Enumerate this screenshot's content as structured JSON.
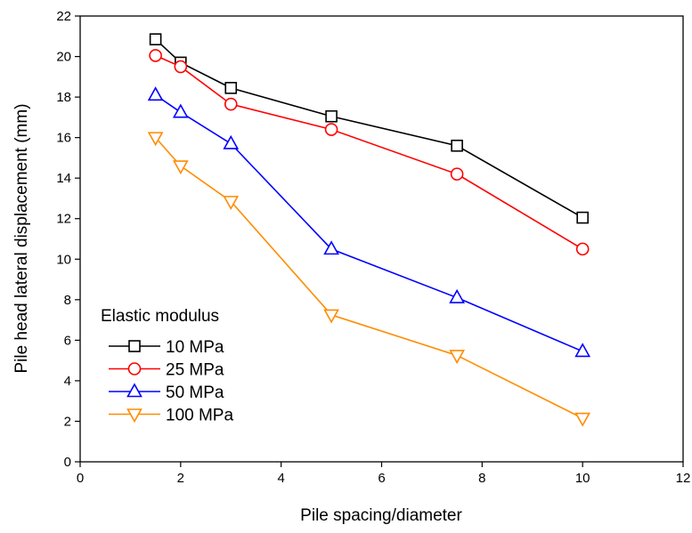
{
  "chart_data": {
    "type": "line",
    "title": "",
    "xlabel": "Pile spacing/diameter",
    "ylabel": "Pile head lateral displacement (mm)",
    "xlim": [
      0,
      12
    ],
    "ylim": [
      0,
      22
    ],
    "xticks": [
      0,
      2,
      4,
      6,
      8,
      10,
      12
    ],
    "yticks": [
      0,
      2,
      4,
      6,
      8,
      10,
      12,
      14,
      16,
      18,
      20,
      22
    ],
    "grid": false,
    "legend": {
      "title": "Elastic modulus",
      "placement": "bottom-left"
    },
    "series": [
      {
        "name": "10 MPa",
        "color": "#000000",
        "marker": "square",
        "x": [
          1.5,
          2,
          3,
          5,
          7.5,
          10
        ],
        "y": [
          20.85,
          19.7,
          18.45,
          17.05,
          15.6,
          12.05
        ]
      },
      {
        "name": "25 MPa",
        "color": "#ff0000",
        "marker": "circle",
        "x": [
          1.5,
          2,
          3,
          5,
          7.5,
          10
        ],
        "y": [
          20.05,
          19.5,
          17.65,
          16.4,
          14.2,
          10.5
        ]
      },
      {
        "name": "50 MPa",
        "color": "#0000ff",
        "marker": "triangle-up",
        "x": [
          1.5,
          2,
          3,
          5,
          7.5,
          10
        ],
        "y": [
          18.1,
          17.25,
          15.7,
          10.5,
          8.1,
          5.45
        ]
      },
      {
        "name": "100 MPa",
        "color": "#ff8c00",
        "marker": "triangle-down",
        "x": [
          1.5,
          2,
          3,
          5,
          7.5,
          10
        ],
        "y": [
          16.0,
          14.6,
          12.85,
          7.25,
          5.25,
          2.15
        ]
      }
    ]
  }
}
